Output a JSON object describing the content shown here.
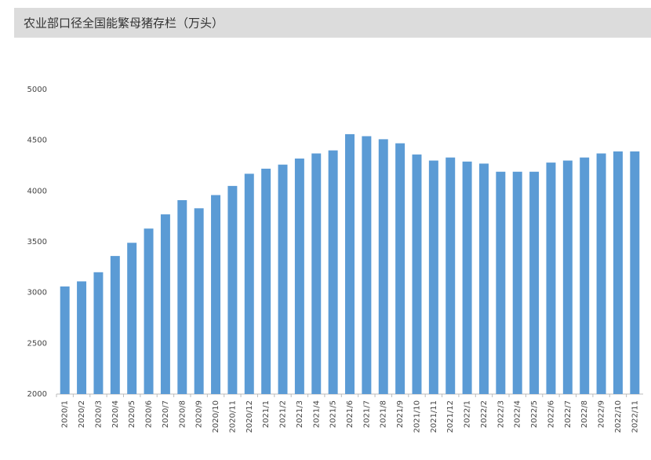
{
  "chart_data": {
    "type": "bar",
    "title": "农业部口径全国能繁母猪存栏（万头）",
    "categories": [
      "2020/1",
      "2020/2",
      "2020/3",
      "2020/4",
      "2020/5",
      "2020/6",
      "2020/7",
      "2020/8",
      "2020/9",
      "2020/10",
      "2020/11",
      "2020/12",
      "2021/1",
      "2021/2",
      "2021/3",
      "2021/4",
      "2021/5",
      "2021/6",
      "2021/7",
      "2021/8",
      "2021/9",
      "2021/10",
      "2021/11",
      "2021/12",
      "2022/1",
      "2022/2",
      "2022/3",
      "2022/4",
      "2022/5",
      "2022/6",
      "2022/7",
      "2022/8",
      "2022/9",
      "2022/10",
      "2022/11"
    ],
    "values": [
      3060,
      3110,
      3200,
      3360,
      3490,
      3630,
      3770,
      3910,
      3830,
      3960,
      4050,
      4170,
      4220,
      4260,
      4320,
      4370,
      4400,
      4560,
      4540,
      4510,
      4470,
      4360,
      4300,
      4330,
      4290,
      4270,
      4190,
      4190,
      4190,
      4280,
      4300,
      4330,
      4370,
      4390,
      4390
    ],
    "color": "#5b9bd5",
    "ylim": [
      2000,
      5000
    ],
    "yticks": [
      2000,
      2500,
      3000,
      3500,
      4000,
      4500,
      5000
    ],
    "grid": false
  }
}
